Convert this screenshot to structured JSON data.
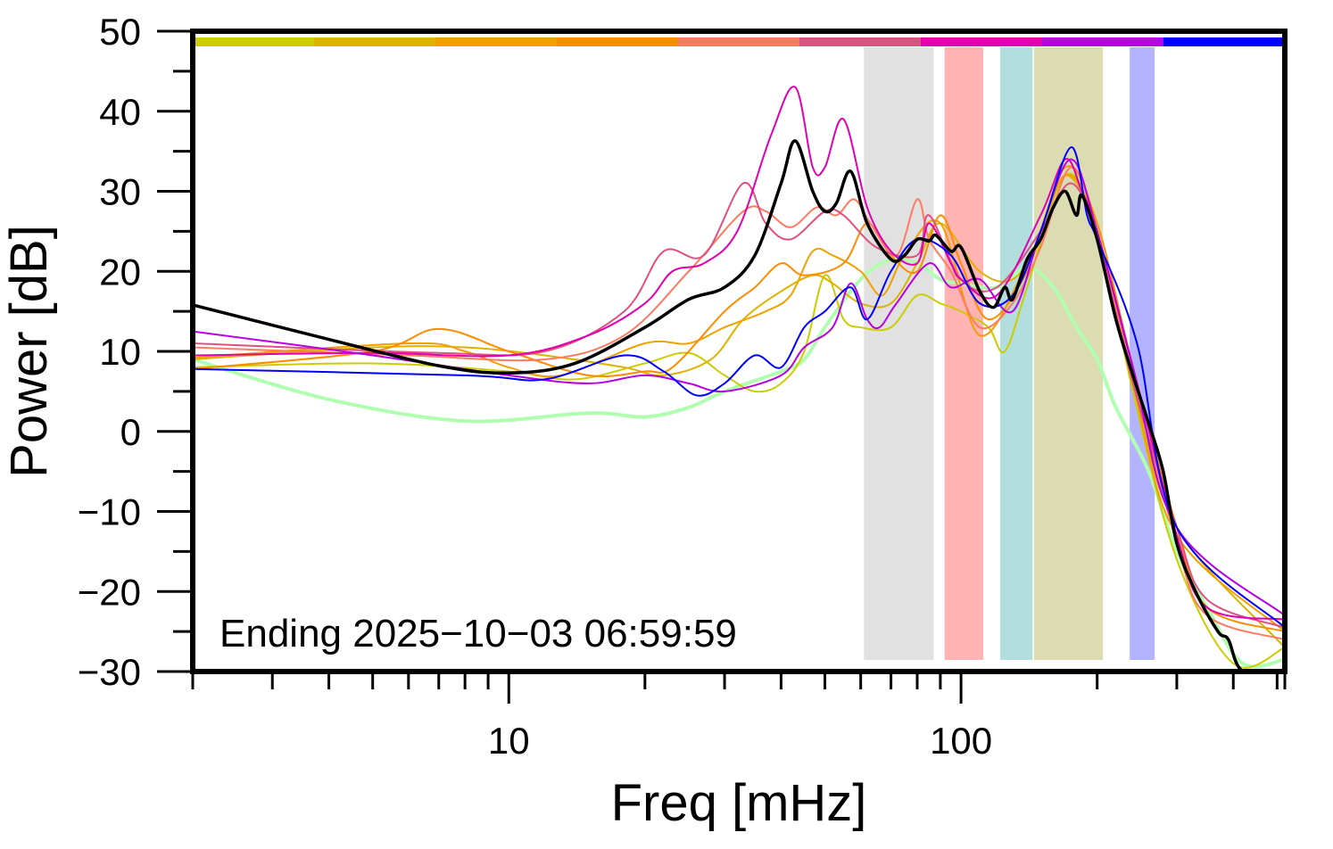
{
  "chart_data": {
    "type": "line",
    "xlabel": "Freq [mHz]",
    "ylabel": "Power [dB]",
    "x_scale": "log",
    "xlim": [
      2,
      520
    ],
    "ylim": [
      -30,
      50
    ],
    "x_tick_labels": [
      "10",
      "100"
    ],
    "y_tick_labels": [
      "50",
      "40",
      "30",
      "20",
      "10",
      "0",
      "−10",
      "−20",
      "−30"
    ],
    "grid": false,
    "annotation": "Ending 2025−10−03 06:59:59",
    "top_color_bar": [
      "#cccc00",
      "#ddb300",
      "#f0a000",
      "#ff8c00",
      "#ff7a60",
      "#de5080",
      "#e000b0",
      "#b800e0",
      "#0000ff"
    ],
    "bands": [
      {
        "from": 61,
        "to": 87,
        "color": "#e1e1e1"
      },
      {
        "from": 92,
        "to": 112,
        "color": "#ffb3b3"
      },
      {
        "from": 122,
        "to": 144,
        "color": "#b3dede"
      },
      {
        "from": 145,
        "to": 206,
        "color": "#dcdcb3"
      },
      {
        "from": 236,
        "to": 268,
        "color": "#b3b3ff"
      }
    ],
    "series": [
      {
        "color": "#b0ffb0",
        "width": 4,
        "points": [
          [
            2,
            9
          ],
          [
            4,
            4
          ],
          [
            8,
            1.3
          ],
          [
            15,
            2.3
          ],
          [
            20,
            1.8
          ],
          [
            25,
            3
          ],
          [
            30,
            5
          ],
          [
            40,
            7.5
          ],
          [
            45,
            9
          ],
          [
            50,
            13
          ],
          [
            60,
            19
          ],
          [
            70,
            21.5
          ],
          [
            80,
            21
          ],
          [
            90,
            19
          ],
          [
            100,
            18.5
          ],
          [
            120,
            18
          ],
          [
            140,
            20.5
          ],
          [
            160,
            18
          ],
          [
            180,
            13
          ],
          [
            200,
            9
          ],
          [
            220,
            3
          ],
          [
            260,
            -5
          ],
          [
            300,
            -15
          ],
          [
            350,
            -22
          ],
          [
            420,
            -29
          ],
          [
            520,
            -28.5
          ]
        ]
      },
      {
        "color": "#cccc00",
        "width": 2,
        "points": [
          [
            2,
            8
          ],
          [
            5,
            8.5
          ],
          [
            10,
            7.5
          ],
          [
            14,
            6.5
          ],
          [
            20,
            8.5
          ],
          [
            25,
            9.8
          ],
          [
            30,
            7
          ],
          [
            35,
            5
          ],
          [
            40,
            6
          ],
          [
            45,
            10
          ],
          [
            50,
            19.5
          ],
          [
            55,
            14
          ],
          [
            60,
            13
          ],
          [
            70,
            13
          ],
          [
            80,
            17
          ],
          [
            90,
            16
          ],
          [
            100,
            15
          ],
          [
            115,
            13
          ],
          [
            125,
            10
          ],
          [
            140,
            18
          ],
          [
            170,
            32
          ],
          [
            200,
            25
          ],
          [
            240,
            5
          ],
          [
            300,
            -16
          ],
          [
            400,
            -29
          ],
          [
            520,
            -27
          ]
        ]
      },
      {
        "color": "#ddb300",
        "width": 2,
        "points": [
          [
            2,
            9
          ],
          [
            5,
            10.5
          ],
          [
            8,
            10.5
          ],
          [
            12,
            9.5
          ],
          [
            18,
            8
          ],
          [
            22,
            7
          ],
          [
            28,
            9
          ],
          [
            33,
            14
          ],
          [
            40,
            17.5
          ],
          [
            47,
            19.5
          ],
          [
            52,
            18.5
          ],
          [
            60,
            16
          ],
          [
            70,
            16
          ],
          [
            80,
            21
          ],
          [
            90,
            26
          ],
          [
            110,
            20
          ],
          [
            130,
            19
          ],
          [
            150,
            24
          ],
          [
            170,
            32
          ],
          [
            200,
            25
          ],
          [
            240,
            6
          ],
          [
            300,
            -12
          ],
          [
            520,
            -27
          ]
        ]
      },
      {
        "color": "#f0a000",
        "width": 2,
        "points": [
          [
            2,
            9.2
          ],
          [
            6,
            11
          ],
          [
            8,
            10
          ],
          [
            10,
            8
          ],
          [
            13,
            7
          ],
          [
            20,
            11
          ],
          [
            25,
            11
          ],
          [
            30,
            13
          ],
          [
            37,
            15
          ],
          [
            42,
            17
          ],
          [
            47,
            22.5
          ],
          [
            52,
            22
          ],
          [
            60,
            20
          ],
          [
            67,
            17
          ],
          [
            75,
            22
          ],
          [
            90,
            26
          ],
          [
            110,
            12
          ],
          [
            140,
            21
          ],
          [
            170,
            32
          ],
          [
            200,
            25
          ],
          [
            240,
            6
          ],
          [
            300,
            -13
          ],
          [
            520,
            -25
          ]
        ]
      },
      {
        "color": "#ff8c00",
        "width": 2,
        "points": [
          [
            2,
            7.8
          ],
          [
            5,
            10
          ],
          [
            7,
            12.8
          ],
          [
            10,
            10
          ],
          [
            15,
            7
          ],
          [
            20,
            7.5
          ],
          [
            23,
            8
          ],
          [
            30,
            15
          ],
          [
            35,
            18
          ],
          [
            40,
            21
          ],
          [
            45,
            19.5
          ],
          [
            55,
            21
          ],
          [
            62,
            26
          ],
          [
            70,
            22
          ],
          [
            80,
            20
          ],
          [
            90,
            27
          ],
          [
            100,
            21
          ],
          [
            115,
            14
          ],
          [
            140,
            20
          ],
          [
            170,
            33
          ],
          [
            200,
            26
          ],
          [
            240,
            8
          ],
          [
            300,
            -12
          ],
          [
            350,
            -22
          ],
          [
            520,
            -25
          ]
        ]
      },
      {
        "color": "#ff7a60",
        "width": 2,
        "points": [
          [
            2,
            10.5
          ],
          [
            6,
            9.5
          ],
          [
            12,
            9
          ],
          [
            18,
            12
          ],
          [
            25,
            20
          ],
          [
            33,
            27.5
          ],
          [
            37,
            27.5
          ],
          [
            42,
            25.5
          ],
          [
            48,
            28
          ],
          [
            53,
            27
          ],
          [
            58,
            29
          ],
          [
            63,
            26
          ],
          [
            72,
            22
          ],
          [
            80,
            29
          ],
          [
            85,
            24
          ],
          [
            95,
            20
          ],
          [
            110,
            13
          ],
          [
            130,
            16
          ],
          [
            150,
            23
          ],
          [
            175,
            33
          ],
          [
            200,
            25
          ],
          [
            240,
            7
          ],
          [
            300,
            -14
          ],
          [
            350,
            -23
          ],
          [
            520,
            -26
          ]
        ]
      },
      {
        "color": "#de5080",
        "width": 2,
        "points": [
          [
            2,
            11
          ],
          [
            7,
            9.8
          ],
          [
            12,
            10
          ],
          [
            18,
            15
          ],
          [
            22,
            22.5
          ],
          [
            27,
            22
          ],
          [
            33,
            31
          ],
          [
            37,
            26
          ],
          [
            42,
            24
          ],
          [
            50,
            27.5
          ],
          [
            55,
            27
          ],
          [
            65,
            23
          ],
          [
            80,
            22
          ],
          [
            85,
            27
          ],
          [
            100,
            19
          ],
          [
            120,
            18
          ],
          [
            150,
            25
          ],
          [
            175,
            31
          ],
          [
            200,
            24
          ],
          [
            240,
            6
          ],
          [
            300,
            -12
          ],
          [
            350,
            -21
          ],
          [
            520,
            -24.5
          ]
        ]
      },
      {
        "color": "#e000b0",
        "width": 2,
        "points": [
          [
            2,
            9.5
          ],
          [
            5,
            9.8
          ],
          [
            10,
            9.5
          ],
          [
            15,
            12
          ],
          [
            20,
            16
          ],
          [
            23,
            20
          ],
          [
            27,
            21
          ],
          [
            32,
            25
          ],
          [
            38,
            37
          ],
          [
            43,
            43
          ],
          [
            47,
            33
          ],
          [
            50,
            33
          ],
          [
            55,
            39
          ],
          [
            62,
            28
          ],
          [
            70,
            22.5
          ],
          [
            80,
            21
          ],
          [
            85,
            26
          ],
          [
            95,
            21
          ],
          [
            100,
            19
          ],
          [
            120,
            17
          ],
          [
            150,
            27
          ],
          [
            170,
            34
          ],
          [
            185,
            30
          ],
          [
            200,
            25
          ],
          [
            240,
            8
          ],
          [
            300,
            -13
          ],
          [
            350,
            -22
          ],
          [
            520,
            -23.5
          ]
        ]
      },
      {
        "color": "#b800e0",
        "width": 2,
        "points": [
          [
            2,
            12.5
          ],
          [
            5,
            9.5
          ],
          [
            10,
            7
          ],
          [
            15,
            6
          ],
          [
            20,
            7
          ],
          [
            25,
            6
          ],
          [
            30,
            5
          ],
          [
            40,
            7
          ],
          [
            45,
            10.5
          ],
          [
            52,
            13
          ],
          [
            57,
            18.5
          ],
          [
            62,
            14
          ],
          [
            66,
            13
          ],
          [
            72,
            16
          ],
          [
            85,
            21
          ],
          [
            95,
            18
          ],
          [
            110,
            19
          ],
          [
            130,
            15
          ],
          [
            150,
            25
          ],
          [
            175,
            34
          ],
          [
            200,
            25
          ],
          [
            240,
            8
          ],
          [
            300,
            -12
          ],
          [
            520,
            -23
          ]
        ]
      },
      {
        "color": "#0000ff",
        "width": 2,
        "points": [
          [
            2,
            7.8
          ],
          [
            8,
            7
          ],
          [
            12,
            6.5
          ],
          [
            18,
            9.5
          ],
          [
            22,
            7.5
          ],
          [
            26,
            4.5
          ],
          [
            30,
            6
          ],
          [
            35,
            9.5
          ],
          [
            40,
            8
          ],
          [
            45,
            13
          ],
          [
            50,
            15
          ],
          [
            57,
            18
          ],
          [
            62,
            14
          ],
          [
            70,
            20
          ],
          [
            80,
            24
          ],
          [
            95,
            22
          ],
          [
            110,
            16
          ],
          [
            130,
            17
          ],
          [
            150,
            25
          ],
          [
            175,
            35.5
          ],
          [
            190,
            27
          ],
          [
            200,
            24
          ],
          [
            245,
            11
          ],
          [
            300,
            -12
          ],
          [
            520,
            -24.5
          ]
        ]
      },
      {
        "color": "#000000",
        "width": 3.5,
        "points": [
          [
            2,
            15.8
          ],
          [
            4,
            11.5
          ],
          [
            7,
            8.2
          ],
          [
            10,
            7.3
          ],
          [
            14,
            8.5
          ],
          [
            20,
            13
          ],
          [
            25,
            16.5
          ],
          [
            30,
            18
          ],
          [
            35,
            22
          ],
          [
            40,
            31
          ],
          [
            43,
            36.3
          ],
          [
            47,
            30
          ],
          [
            50,
            27.5
          ],
          [
            53,
            28.5
          ],
          [
            57,
            32.5
          ],
          [
            62,
            26
          ],
          [
            70,
            21.5
          ],
          [
            75,
            22
          ],
          [
            80,
            24
          ],
          [
            85,
            23.8
          ],
          [
            88,
            24.5
          ],
          [
            95,
            22.5
          ],
          [
            100,
            23
          ],
          [
            110,
            17.5
          ],
          [
            118,
            15.5
          ],
          [
            125,
            18
          ],
          [
            130,
            16.5
          ],
          [
            140,
            21.5
          ],
          [
            150,
            24
          ],
          [
            160,
            28
          ],
          [
            170,
            30
          ],
          [
            180,
            27
          ],
          [
            185,
            29.5
          ],
          [
            200,
            24
          ],
          [
            220,
            14
          ],
          [
            240,
            7
          ],
          [
            260,
            1
          ],
          [
            280,
            -5
          ],
          [
            300,
            -14
          ],
          [
            330,
            -20
          ],
          [
            370,
            -25
          ],
          [
            390,
            -26
          ],
          [
            420,
            -30
          ],
          [
            520,
            -31
          ]
        ]
      }
    ]
  }
}
